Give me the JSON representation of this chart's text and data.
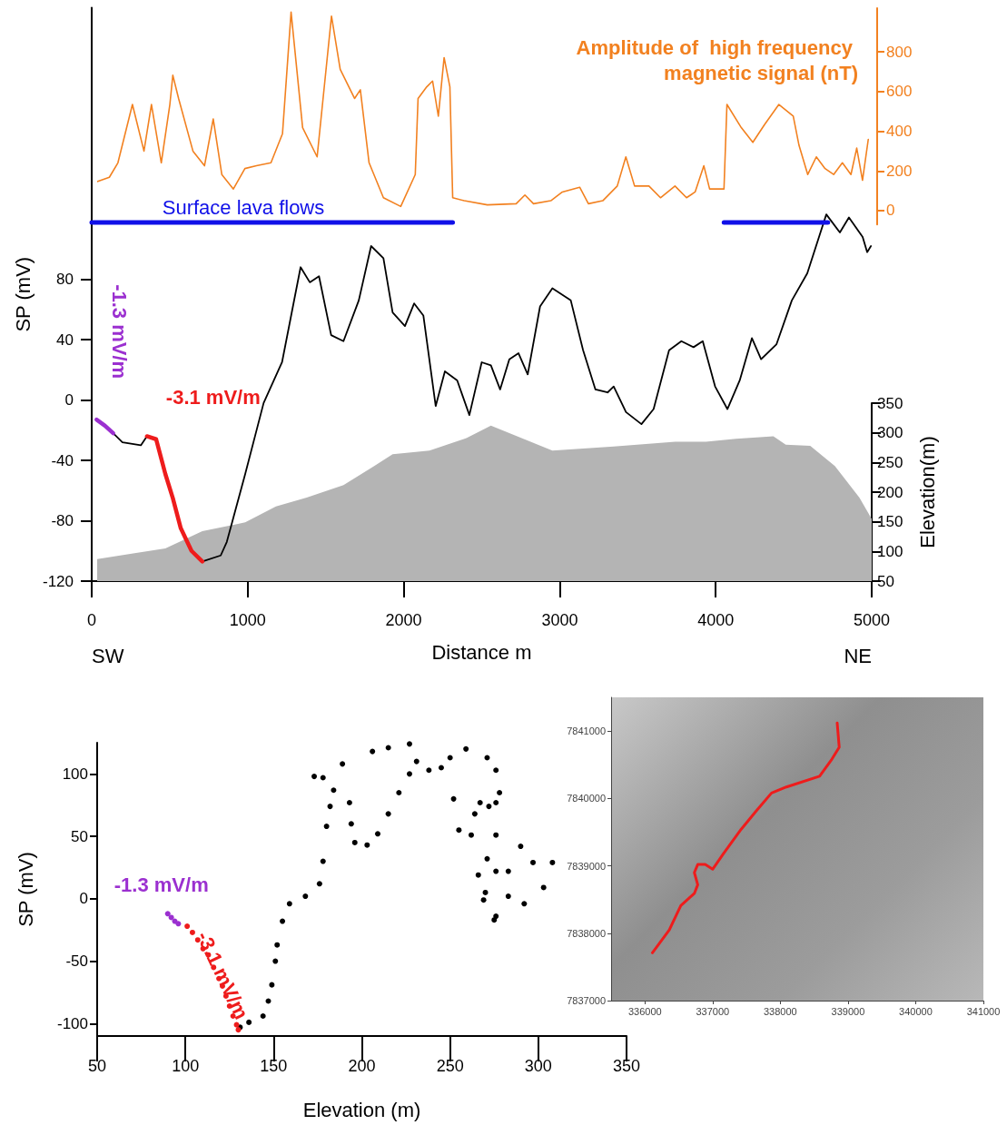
{
  "chart_data": [
    {
      "type": "line",
      "xlabel": "Distance m",
      "ylabel": "SP (mV)",
      "y2label": "Elevation(m)",
      "y3label": "Amplitude of  high frequency magnetic signal (nT)",
      "xlim": [
        0,
        5000
      ],
      "xticks": [
        0,
        1000,
        2000,
        3000,
        4000,
        5000
      ],
      "ylim": [
        -120,
        260
      ],
      "yticks": [
        -120,
        -80,
        -40,
        0,
        40,
        80
      ],
      "y2lim": [
        50,
        350
      ],
      "y2ticks": [
        50,
        100,
        150,
        200,
        250,
        300,
        350
      ],
      "y3lim": [
        -70,
        1020
      ],
      "y3ticks": [
        0,
        200,
        400,
        600,
        800
      ],
      "annotations": [
        "SW",
        "NE"
      ],
      "series": [
        {
          "axis": "y3",
          "color": "#f28120",
          "x": [
            39,
            113,
            168,
            261,
            335,
            383,
            446,
            501,
            520,
            557,
            649,
            723,
            779,
            834,
            908,
            982,
            1056,
            1149,
            1223,
            1278,
            1352,
            1445,
            1537,
            1593,
            1685,
            1722,
            1778,
            1870,
            1981,
            2074,
            2092,
            2148,
            2185,
            2222,
            2259,
            2296,
            2314,
            2388,
            2536,
            2721,
            2777,
            2832,
            2943,
            3017,
            3128,
            3184,
            3276,
            3369,
            3424,
            3480,
            3572,
            3646,
            3739,
            3813,
            3868,
            3924,
            3961,
            4053,
            4072,
            4164,
            4238,
            4312,
            4405,
            4497,
            4534,
            4590,
            4645,
            4701,
            4756,
            4812,
            4867,
            4904,
            4941,
            4978
          ],
          "values": [
            147,
            168,
            241,
            535,
            300,
            535,
            241,
            535,
            682,
            565,
            300,
            226,
            462,
            182,
            109,
            212,
            226,
            241,
            388,
            1000,
            418,
            271,
            980,
            712,
            565,
            609,
            241,
            65,
            21,
            182,
            565,
            624,
            653,
            476,
            771,
            624,
            65,
            50,
            29,
            35,
            79,
            35,
            50,
            94,
            118,
            35,
            50,
            124,
            271,
            124,
            124,
            65,
            124,
            65,
            94,
            226,
            109,
            109,
            535,
            418,
            344,
            432,
            535,
            476,
            329,
            182,
            271,
            212,
            182,
            241,
            182,
            315,
            153,
            359
          ]
        },
        {
          "color": "#000000",
          "x": [
            138,
            197,
            315,
            354,
            500,
            709,
            827,
            866,
            984,
            1102,
            1220,
            1339,
            1398,
            1457,
            1535,
            1614,
            1712,
            1791,
            1870,
            1929,
            2008,
            2067,
            2126,
            2205,
            2264,
            2343,
            2421,
            2500,
            2559,
            2618,
            2677,
            2736,
            2795,
            2874,
            2953,
            3071,
            3150,
            3229,
            3307,
            3346,
            3425,
            3524,
            3602,
            3701,
            3780,
            3858,
            3917,
            3996,
            4075,
            4154,
            4232,
            4291,
            4390,
            4488,
            4587,
            4709,
            4796,
            4854,
            4942,
            4971,
            4995
          ],
          "values": [
            -22,
            -28,
            -30,
            -24,
            null,
            -107,
            -103,
            -94,
            -49,
            -2,
            25,
            88,
            78,
            82,
            43,
            39,
            66,
            102,
            94,
            58,
            49,
            64,
            56,
            -4,
            19,
            13,
            -10,
            25,
            23,
            7,
            27,
            31,
            17,
            62,
            74,
            66,
            33,
            7,
            5,
            9,
            -8,
            -16,
            -6,
            33,
            39,
            35,
            39,
            9,
            -6,
            13,
            41,
            27,
            37,
            66,
            84,
            123,
            111,
            121,
            108,
            98,
            102
          ]
        },
        {
          "name": "-1.3 mV/m",
          "color": "#9b30d0",
          "x": [
            31,
            85,
            138
          ],
          "values": [
            -13,
            -17,
            -22
          ]
        },
        {
          "name": "-3.1 mV/m",
          "color": "#ee1c1c",
          "x": [
            354,
            413,
            472,
            520,
            571,
            640,
            709
          ],
          "values": [
            -24,
            -26,
            -49,
            -65,
            -85,
            -100,
            -107
          ]
        },
        {
          "type": "area",
          "axis": "y2",
          "color": "#b4b4b4",
          "x": [
            35,
            275,
            472,
            709,
            984,
            1181,
            1378,
            1614,
            1811,
            1929,
            2165,
            2402,
            2559,
            2756,
            2953,
            3346,
            3740,
            3937,
            4130,
            4370,
            4449,
            4606,
            4764,
            4921,
            5000
          ],
          "values": [
            87,
            97,
            105,
            134,
            149,
            176,
            191,
            212,
            244,
            264,
            270,
            291,
            312,
            291,
            270,
            277,
            285,
            285,
            290,
            294,
            280,
            278,
            244,
            191,
            155
          ]
        },
        {
          "name": "Surface lava flows",
          "axis": "y3",
          "color": "#1010e8",
          "x": [
            0,
            2314
          ],
          "values": [
            -59,
            -59
          ]
        },
        {
          "axis": "y3",
          "color": "#1010e8",
          "x": [
            4053,
            4719
          ],
          "values": [
            -59,
            -59
          ]
        }
      ]
    },
    {
      "type": "scatter",
      "xlabel": "Elevation (m)",
      "ylabel": "SP (mV)",
      "marker": "circle",
      "xlim": [
        50,
        350
      ],
      "xticks": [
        50,
        100,
        150,
        200,
        250,
        300,
        350
      ],
      "ylim": [
        -110,
        125
      ],
      "yticks": [
        -100,
        -50,
        0,
        50,
        100
      ],
      "series": [
        {
          "color": "#000000",
          "x": [
            131,
            136,
            144,
            147,
            149,
            151,
            152,
            155,
            159,
            168,
            176,
            178,
            180,
            182,
            184,
            193,
            194,
            196,
            203,
            209,
            215,
            221,
            227,
            231,
            238,
            245,
            252,
            255,
            262,
            264,
            267,
            272,
            276,
            276,
            278,
            276,
            271,
            259,
            250,
            227,
            215,
            206,
            189,
            178,
            173,
            271,
            283,
            290,
            297,
            308,
            303,
            292,
            283,
            276,
            269,
            266,
            276,
            275,
            270
          ],
          "values": [
            -103,
            -99,
            -94,
            -82,
            -69,
            -50,
            -37,
            -18,
            -4,
            2,
            12,
            30,
            58,
            74,
            87,
            77,
            60,
            45,
            43,
            52,
            68,
            85,
            100,
            110,
            103,
            105,
            80,
            55,
            51,
            68,
            77,
            74,
            51,
            77,
            85,
            103,
            113,
            120,
            113,
            124,
            121,
            118,
            108,
            97,
            98,
            32,
            22,
            42,
            29,
            29,
            9,
            -4,
            2,
            -14,
            -1,
            19,
            22,
            -17,
            5
          ]
        },
        {
          "name": "-1.3 mV/m",
          "color": "#9b30d0",
          "x": [
            90,
            92,
            94,
            96
          ],
          "values": [
            -12,
            -15,
            -18,
            -20
          ]
        },
        {
          "name": "-3.1 mV/m",
          "color": "#ee1c1c",
          "x": [
            101,
            104,
            107,
            110,
            113,
            116,
            119,
            121,
            123,
            125,
            127,
            129,
            130
          ],
          "values": [
            -22,
            -27,
            -33,
            -40,
            -45,
            -55,
            -64,
            -70,
            -78,
            -86,
            -94,
            -101,
            -105
          ]
        }
      ]
    },
    {
      "type": "line",
      "xlim": [
        335500,
        341000
      ],
      "xticks": [
        336000,
        337000,
        338000,
        339000,
        340000,
        341000
      ],
      "ylim": [
        7837000,
        7841500
      ],
      "yticks": [
        7837000,
        7838000,
        7839000,
        7840000,
        7841000
      ],
      "series": [
        {
          "color": "#ee1c1c",
          "x": [
            336110,
            336360,
            336530,
            336730,
            336780,
            336730,
            336780,
            336890,
            337000,
            337160,
            337420,
            337640,
            337870,
            338090,
            338580,
            338760,
            338870,
            338840
          ],
          "values": [
            7837710,
            7838050,
            7838410,
            7838590,
            7838720,
            7838900,
            7839020,
            7839020,
            7838950,
            7839180,
            7839540,
            7839810,
            7840080,
            7840170,
            7840330,
            7840580,
            7840760,
            7841120
          ]
        }
      ]
    }
  ]
}
